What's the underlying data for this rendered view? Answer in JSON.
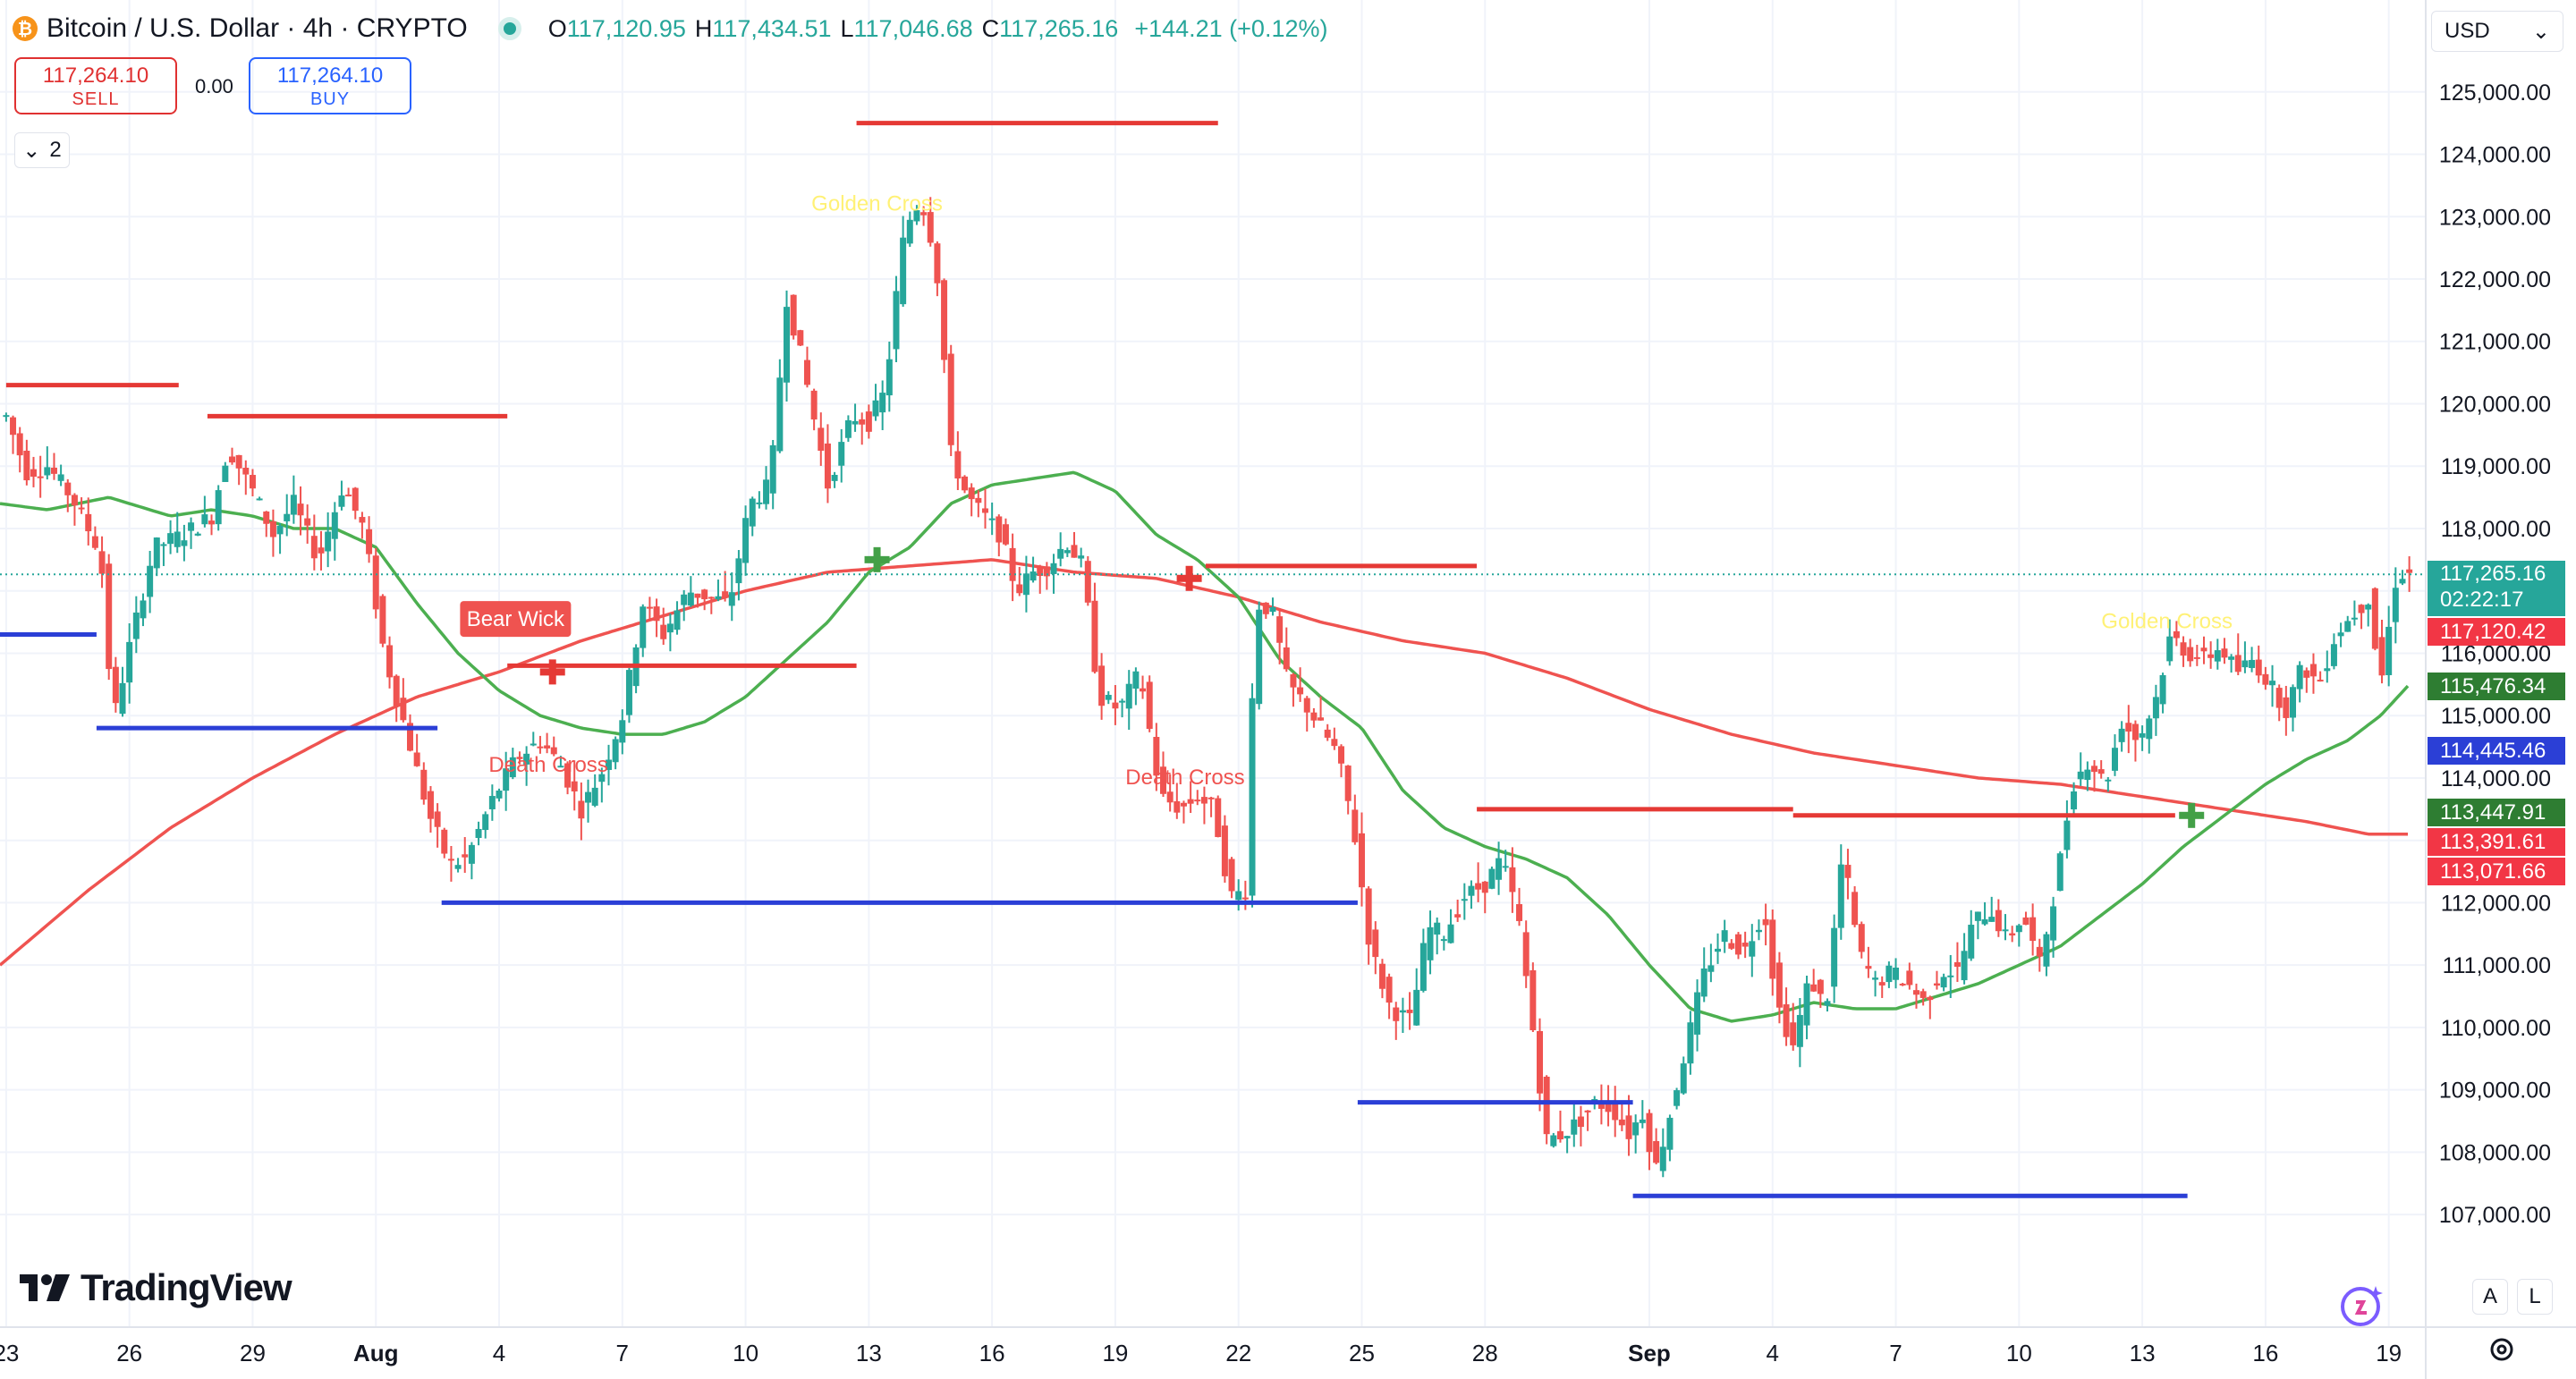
{
  "header": {
    "coin_glyph": "₿",
    "title": "Bitcoin / U.S. Dollar · 4h · CRYPTO",
    "ohlc": {
      "o_key": "O",
      "o_val": "117,120.95",
      "h_key": "H",
      "h_val": "117,434.51",
      "l_key": "L",
      "l_val": "117,046.68",
      "c_key": "C",
      "c_val": "117,265.16",
      "change": "+144.21 (+0.12%)"
    }
  },
  "trade": {
    "sell_price": "117,264.10",
    "sell_label": "SELL",
    "spread": "0.00",
    "buy_price": "117,264.10",
    "buy_label": "BUY"
  },
  "indicators_toggle": {
    "chevron": "⌄",
    "count": "2"
  },
  "currency": {
    "value": "USD",
    "chevron": "⌄"
  },
  "logo": {
    "text": "TradingView"
  },
  "controls": {
    "auto_scale": "A",
    "log_scale": "L"
  },
  "colors": {
    "up": "#26a69a",
    "down": "#ef5350",
    "sma_short": "#4caf50",
    "sma_long": "#ef5350",
    "resistance": "#e53935",
    "support": "#2b3fd6",
    "grid": "#f0f3fa"
  },
  "chart_data": {
    "type": "candlestick",
    "symbol": "Bitcoin / U.S. Dollar",
    "interval": "4h",
    "ylim": [
      106400,
      125900
    ],
    "y_ticks": [
      107000,
      108000,
      109000,
      110000,
      111000,
      112000,
      113000,
      114000,
      115000,
      116000,
      117000,
      118000,
      119000,
      120000,
      121000,
      122000,
      123000,
      124000,
      125000
    ],
    "y_tick_labels": [
      "107,000.00",
      "108,000.00",
      "109,000.00",
      "110,000.00",
      "111,000.00",
      "112,000.00",
      "113,000.00",
      "114,000.00",
      "115,000.00",
      "116,000.00",
      "117,000.00",
      "118,000.00",
      "119,000.00",
      "120,000.00",
      "121,000.00",
      "122,000.00",
      "123,000.00",
      "124,000.00",
      "125,000.00"
    ],
    "x_ticks": [
      {
        "label": "23",
        "day": 0,
        "bold": false
      },
      {
        "label": "26",
        "day": 3,
        "bold": false
      },
      {
        "label": "29",
        "day": 6,
        "bold": false
      },
      {
        "label": "Aug",
        "day": 9,
        "bold": true
      },
      {
        "label": "4",
        "day": 12,
        "bold": false
      },
      {
        "label": "7",
        "day": 15,
        "bold": false
      },
      {
        "label": "10",
        "day": 18,
        "bold": false
      },
      {
        "label": "13",
        "day": 21,
        "bold": false
      },
      {
        "label": "16",
        "day": 24,
        "bold": false
      },
      {
        "label": "19",
        "day": 27,
        "bold": false
      },
      {
        "label": "22",
        "day": 30,
        "bold": false
      },
      {
        "label": "25",
        "day": 33,
        "bold": false
      },
      {
        "label": "28",
        "day": 36,
        "bold": false
      },
      {
        "label": "Sep",
        "day": 40,
        "bold": true
      },
      {
        "label": "4",
        "day": 43,
        "bold": false
      },
      {
        "label": "7",
        "day": 46,
        "bold": false
      },
      {
        "label": "10",
        "day": 49,
        "bold": false
      },
      {
        "label": "13",
        "day": 52,
        "bold": false
      },
      {
        "label": "16",
        "day": 55,
        "bold": false
      },
      {
        "label": "19",
        "day": 58,
        "bold": false
      }
    ],
    "x_range_days": [
      -0.15,
      58.9
    ],
    "price_path": [
      [
        0,
        119800
      ],
      [
        0.5,
        118900
      ],
      [
        1,
        119000
      ],
      [
        1.6,
        118500
      ],
      [
        2.3,
        117600
      ],
      [
        2.6,
        114900
      ],
      [
        3,
        116100
      ],
      [
        3.6,
        117700
      ],
      [
        4.3,
        117900
      ],
      [
        5,
        118200
      ],
      [
        5.4,
        119300
      ],
      [
        6,
        118600
      ],
      [
        6.5,
        117900
      ],
      [
        7,
        118400
      ],
      [
        7.6,
        117500
      ],
      [
        8.2,
        118700
      ],
      [
        8.7,
        118000
      ],
      [
        9.2,
        116000
      ],
      [
        9.8,
        114600
      ],
      [
        10.3,
        113400
      ],
      [
        10.8,
        112600
      ],
      [
        11.2,
        112700
      ],
      [
        11.8,
        113600
      ],
      [
        12.4,
        114300
      ],
      [
        13,
        114600
      ],
      [
        13.5,
        114200
      ],
      [
        14,
        113500
      ],
      [
        14.5,
        114100
      ],
      [
        15,
        115000
      ],
      [
        15.5,
        116800
      ],
      [
        16,
        116300
      ],
      [
        16.6,
        117000
      ],
      [
        17.1,
        116900
      ],
      [
        17.6,
        116800
      ],
      [
        18.1,
        118400
      ],
      [
        18.6,
        118700
      ],
      [
        19,
        121700
      ],
      [
        19.4,
        120600
      ],
      [
        20,
        118700
      ],
      [
        20.6,
        119800
      ],
      [
        21,
        119700
      ],
      [
        21.4,
        120200
      ],
      [
        21.8,
        122500
      ],
      [
        22.1,
        123200
      ],
      [
        22.4,
        123100
      ],
      [
        22.7,
        121900
      ],
      [
        23,
        119200
      ],
      [
        23.4,
        118500
      ],
      [
        23.8,
        118200
      ],
      [
        24.2,
        117900
      ],
      [
        24.6,
        117000
      ],
      [
        25,
        117300
      ],
      [
        25.4,
        117400
      ],
      [
        25.8,
        117800
      ],
      [
        26.2,
        117400
      ],
      [
        26.6,
        115300
      ],
      [
        27.1,
        115100
      ],
      [
        27.6,
        115700
      ],
      [
        28.1,
        113700
      ],
      [
        28.6,
        113500
      ],
      [
        29,
        113700
      ],
      [
        29.4,
        113500
      ],
      [
        29.8,
        112100
      ],
      [
        30.2,
        112200
      ],
      [
        30.4,
        116800
      ],
      [
        30.8,
        116700
      ],
      [
        31.2,
        115500
      ],
      [
        31.6,
        115200
      ],
      [
        32,
        114800
      ],
      [
        32.4,
        114400
      ],
      [
        32.8,
        113200
      ],
      [
        33.2,
        111300
      ],
      [
        33.7,
        110300
      ],
      [
        34.2,
        110100
      ],
      [
        34.6,
        111600
      ],
      [
        35,
        111500
      ],
      [
        35.5,
        112100
      ],
      [
        36,
        112300
      ],
      [
        36.4,
        112700
      ],
      [
        36.8,
        111800
      ],
      [
        37.2,
        109800
      ],
      [
        37.5,
        108200
      ],
      [
        37.9,
        108300
      ],
      [
        38.3,
        108500
      ],
      [
        38.7,
        108800
      ],
      [
        39.1,
        108700
      ],
      [
        39.5,
        108300
      ],
      [
        39.9,
        108700
      ],
      [
        40.1,
        107600
      ],
      [
        40.5,
        108600
      ],
      [
        40.9,
        109700
      ],
      [
        41.3,
        110800
      ],
      [
        41.8,
        111500
      ],
      [
        42.3,
        111200
      ],
      [
        42.8,
        111900
      ],
      [
        43.1,
        110400
      ],
      [
        43.5,
        109700
      ],
      [
        43.9,
        110800
      ],
      [
        44.3,
        110300
      ],
      [
        44.7,
        112800
      ],
      [
        45.1,
        111200
      ],
      [
        45.5,
        110700
      ],
      [
        45.9,
        110900
      ],
      [
        46.3,
        110700
      ],
      [
        46.7,
        110400
      ],
      [
        47.1,
        110900
      ],
      [
        47.5,
        110900
      ],
      [
        47.9,
        111700
      ],
      [
        48.3,
        111900
      ],
      [
        48.7,
        111400
      ],
      [
        49.1,
        111800
      ],
      [
        49.5,
        111000
      ],
      [
        49.9,
        112300
      ],
      [
        50.3,
        113900
      ],
      [
        50.7,
        114300
      ],
      [
        51.1,
        113900
      ],
      [
        51.5,
        114900
      ],
      [
        51.9,
        114600
      ],
      [
        52.3,
        115200
      ],
      [
        52.7,
        116300
      ],
      [
        53.1,
        116000
      ],
      [
        53.5,
        115900
      ],
      [
        53.9,
        116100
      ],
      [
        54.3,
        115700
      ],
      [
        54.7,
        115900
      ],
      [
        55.1,
        115500
      ],
      [
        55.5,
        115100
      ],
      [
        55.9,
        115800
      ],
      [
        56.3,
        115500
      ],
      [
        56.7,
        116300
      ],
      [
        57.1,
        116600
      ],
      [
        57.5,
        116900
      ],
      [
        57.8,
        115500
      ],
      [
        58.2,
        117300
      ],
      [
        58.5,
        117265
      ]
    ],
    "sma_short": [
      [
        -0.15,
        118400
      ],
      [
        1,
        118300
      ],
      [
        2.5,
        118500
      ],
      [
        4,
        118200
      ],
      [
        5,
        118300
      ],
      [
        6,
        118200
      ],
      [
        7,
        118000
      ],
      [
        8,
        118000
      ],
      [
        9,
        117700
      ],
      [
        10,
        116800
      ],
      [
        11,
        116000
      ],
      [
        12,
        115400
      ],
      [
        13,
        115000
      ],
      [
        14,
        114800
      ],
      [
        15,
        114700
      ],
      [
        16,
        114700
      ],
      [
        17,
        114900
      ],
      [
        18,
        115300
      ],
      [
        19,
        115900
      ],
      [
        20,
        116500
      ],
      [
        21,
        117300
      ],
      [
        22,
        117700
      ],
      [
        23,
        118400
      ],
      [
        24,
        118700
      ],
      [
        25,
        118800
      ],
      [
        26,
        118900
      ],
      [
        27,
        118600
      ],
      [
        28,
        117900
      ],
      [
        29,
        117500
      ],
      [
        30,
        116900
      ],
      [
        31,
        115900
      ],
      [
        32,
        115300
      ],
      [
        33,
        114800
      ],
      [
        34,
        113800
      ],
      [
        35,
        113200
      ],
      [
        36,
        112900
      ],
      [
        37,
        112700
      ],
      [
        38,
        112400
      ],
      [
        39,
        111800
      ],
      [
        40,
        111000
      ],
      [
        41,
        110300
      ],
      [
        42,
        110100
      ],
      [
        43,
        110200
      ],
      [
        44,
        110400
      ],
      [
        45,
        110300
      ],
      [
        46,
        110300
      ],
      [
        47,
        110500
      ],
      [
        48,
        110700
      ],
      [
        49,
        111000
      ],
      [
        50,
        111300
      ],
      [
        51,
        111800
      ],
      [
        52,
        112300
      ],
      [
        53,
        112900
      ],
      [
        54,
        113400
      ],
      [
        55,
        113900
      ],
      [
        56,
        114300
      ],
      [
        57,
        114600
      ],
      [
        57.8,
        115000
      ],
      [
        58.5,
        115500
      ]
    ],
    "sma_long": [
      [
        -0.15,
        111000
      ],
      [
        2,
        112200
      ],
      [
        4,
        113200
      ],
      [
        6,
        114000
      ],
      [
        8,
        114700
      ],
      [
        10,
        115300
      ],
      [
        12,
        115700
      ],
      [
        14,
        116200
      ],
      [
        16,
        116600
      ],
      [
        18,
        117000
      ],
      [
        20,
        117300
      ],
      [
        22,
        117400
      ],
      [
        24,
        117500
      ],
      [
        26,
        117300
      ],
      [
        28,
        117200
      ],
      [
        30,
        116900
      ],
      [
        32,
        116500
      ],
      [
        34,
        116200
      ],
      [
        36,
        116000
      ],
      [
        38,
        115600
      ],
      [
        40,
        115100
      ],
      [
        42,
        114700
      ],
      [
        44,
        114400
      ],
      [
        46,
        114200
      ],
      [
        48,
        114000
      ],
      [
        50,
        113900
      ],
      [
        52,
        113700
      ],
      [
        54,
        113500
      ],
      [
        56,
        113300
      ],
      [
        57.5,
        113100
      ],
      [
        58.5,
        113100
      ]
    ],
    "resistance_lines": [
      {
        "from_day": 0,
        "to_day": 4.2,
        "price": 120300
      },
      {
        "from_day": 4.9,
        "to_day": 12.2,
        "price": 119800
      },
      {
        "from_day": 20.7,
        "to_day": 29.5,
        "price": 124500
      },
      {
        "from_day": 12.2,
        "to_day": 20.7,
        "price": 115800
      },
      {
        "from_day": 29.2,
        "to_day": 35.8,
        "price": 117400
      },
      {
        "from_day": 35.8,
        "to_day": 43.5,
        "price": 113500
      },
      {
        "from_day": 43.5,
        "to_day": 52.8,
        "price": 113400
      }
    ],
    "support_lines": [
      {
        "from_day": -0.15,
        "to_day": 2.2,
        "price": 116300
      },
      {
        "from_day": 2.2,
        "to_day": 10.5,
        "price": 114800
      },
      {
        "from_day": 10.6,
        "to_day": 32.9,
        "price": 112000
      },
      {
        "from_day": 32.9,
        "to_day": 39.6,
        "price": 108800
      },
      {
        "from_day": 39.6,
        "to_day": 53.1,
        "price": 107300
      }
    ],
    "cross_markers": [
      {
        "type": "Golden Cross",
        "day": 21.2,
        "price": 117500
      },
      {
        "type": "Death Cross",
        "day": 13.3,
        "price": 115700
      },
      {
        "type": "Death Cross",
        "day": 28.8,
        "price": 117200
      },
      {
        "type": "Golden Cross",
        "day": 53.2,
        "price": 113400
      }
    ],
    "annotations": [
      {
        "text": "Golden Cross",
        "day": 21.2,
        "price": 123100,
        "color": "#fff176"
      },
      {
        "text": "Death Cross",
        "day": 13.2,
        "price": 114100,
        "color": "#ef5350"
      },
      {
        "text": "Death Cross",
        "day": 28.7,
        "price": 113900,
        "color": "#ef5350"
      },
      {
        "text": "Golden Cross",
        "day": 52.6,
        "price": 116400,
        "color": "#fff176"
      }
    ],
    "bear_wick_label": {
      "text": "Bear Wick",
      "day": 12.4,
      "price": 116550
    },
    "current_price_line": 117265.16,
    "price_tags": [
      {
        "text": "117,265.16",
        "sub": "02:22:17",
        "price": 117265.16,
        "bg": "#26a69a"
      },
      {
        "text": "117,120.42",
        "price": 117120.42,
        "bg": "#f23645"
      },
      {
        "text": "115,476.34",
        "price": 115476.34,
        "bg": "#2e7d32"
      },
      {
        "text": "114,445.46",
        "price": 114445.46,
        "bg": "#2b3fd6"
      },
      {
        "text": "113,447.91",
        "price": 113447.91,
        "bg": "#2e7d32"
      },
      {
        "text": "113,391.61",
        "price": 113391.61,
        "bg": "#f23645"
      },
      {
        "text": "113,071.66",
        "price": 113071.66,
        "bg": "#f23645"
      }
    ]
  }
}
